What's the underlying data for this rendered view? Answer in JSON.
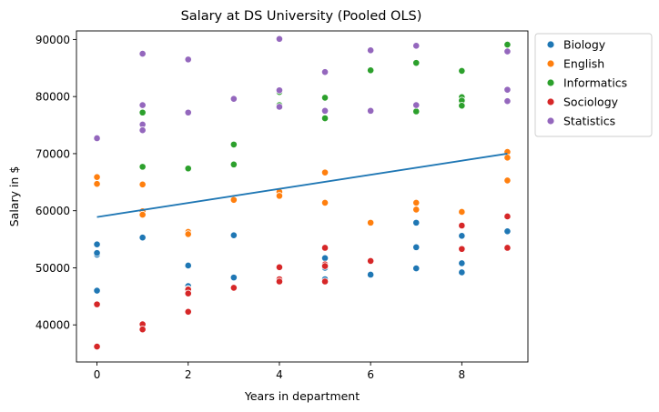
{
  "chart_data": {
    "type": "scatter",
    "title": "Salary at DS University (Pooled OLS)",
    "xlabel": "Years in department",
    "ylabel": "Salary in $",
    "xlim": [
      -0.45,
      9.45
    ],
    "ylim": [
      33500,
      91500
    ],
    "xticks": [
      0,
      2,
      4,
      6,
      8
    ],
    "yticks": [
      40000,
      50000,
      60000,
      70000,
      80000,
      90000
    ],
    "grid": false,
    "legend_position": "outside-top-right",
    "series": [
      {
        "name": "Biology",
        "color": "#1f77b4",
        "points": [
          [
            0,
            54100
          ],
          [
            0,
            52300
          ],
          [
            0,
            52600
          ],
          [
            0,
            46000
          ],
          [
            1,
            55300
          ],
          [
            2,
            50400
          ],
          [
            2,
            46800
          ],
          [
            2,
            46300
          ],
          [
            3,
            55700
          ],
          [
            3,
            48300
          ],
          [
            4,
            47700
          ],
          [
            5,
            51700
          ],
          [
            5,
            50000
          ],
          [
            5,
            48000
          ],
          [
            6,
            48800
          ],
          [
            7,
            57900
          ],
          [
            7,
            53600
          ],
          [
            7,
            49900
          ],
          [
            8,
            55600
          ],
          [
            8,
            50800
          ],
          [
            8,
            49200
          ],
          [
            9,
            56400
          ]
        ]
      },
      {
        "name": "English",
        "color": "#ff7f0e",
        "points": [
          [
            0,
            65900
          ],
          [
            0,
            64700
          ],
          [
            1,
            64600
          ],
          [
            1,
            59900
          ],
          [
            1,
            59300
          ],
          [
            2,
            56300
          ],
          [
            2,
            55900
          ],
          [
            3,
            61900
          ],
          [
            4,
            63300
          ],
          [
            4,
            62600
          ],
          [
            5,
            66700
          ],
          [
            5,
            61400
          ],
          [
            6,
            57900
          ],
          [
            7,
            61400
          ],
          [
            7,
            60200
          ],
          [
            8,
            59800
          ],
          [
            9,
            70300
          ],
          [
            9,
            69300
          ],
          [
            9,
            65300
          ]
        ]
      },
      {
        "name": "Informatics",
        "color": "#2ca02c",
        "points": [
          [
            1,
            77200
          ],
          [
            1,
            67700
          ],
          [
            2,
            67400
          ],
          [
            3,
            71600
          ],
          [
            3,
            68100
          ],
          [
            4,
            80800
          ],
          [
            4,
            78500
          ],
          [
            5,
            79800
          ],
          [
            5,
            76200
          ],
          [
            6,
            84600
          ],
          [
            7,
            85900
          ],
          [
            7,
            77400
          ],
          [
            8,
            84500
          ],
          [
            8,
            79900
          ],
          [
            8,
            79300
          ],
          [
            8,
            78400
          ],
          [
            9,
            89100
          ]
        ]
      },
      {
        "name": "Sociology",
        "color": "#d62728",
        "points": [
          [
            0,
            43600
          ],
          [
            0,
            36200
          ],
          [
            1,
            40100
          ],
          [
            1,
            39200
          ],
          [
            2,
            46200
          ],
          [
            2,
            45500
          ],
          [
            2,
            42300
          ],
          [
            3,
            46500
          ],
          [
            4,
            50100
          ],
          [
            4,
            48000
          ],
          [
            4,
            47600
          ],
          [
            5,
            53500
          ],
          [
            5,
            50600
          ],
          [
            5,
            50300
          ],
          [
            5,
            47600
          ],
          [
            6,
            51200
          ],
          [
            8,
            57400
          ],
          [
            8,
            53300
          ],
          [
            9,
            59000
          ],
          [
            9,
            53500
          ]
        ]
      },
      {
        "name": "Statistics",
        "color": "#9467bd",
        "points": [
          [
            0,
            72700
          ],
          [
            1,
            87500
          ],
          [
            1,
            78500
          ],
          [
            1,
            75100
          ],
          [
            1,
            74100
          ],
          [
            2,
            86500
          ],
          [
            2,
            77200
          ],
          [
            3,
            79600
          ],
          [
            4,
            90100
          ],
          [
            4,
            81100
          ],
          [
            4,
            78200
          ],
          [
            5,
            84300
          ],
          [
            5,
            77500
          ],
          [
            6,
            88100
          ],
          [
            6,
            77500
          ],
          [
            7,
            88900
          ],
          [
            7,
            78500
          ],
          [
            9,
            87900
          ],
          [
            9,
            81200
          ],
          [
            9,
            79200
          ]
        ]
      }
    ],
    "fit_line": {
      "color": "#1f77b4",
      "points": [
        [
          0,
          58900
        ],
        [
          9,
          70000
        ]
      ]
    }
  }
}
